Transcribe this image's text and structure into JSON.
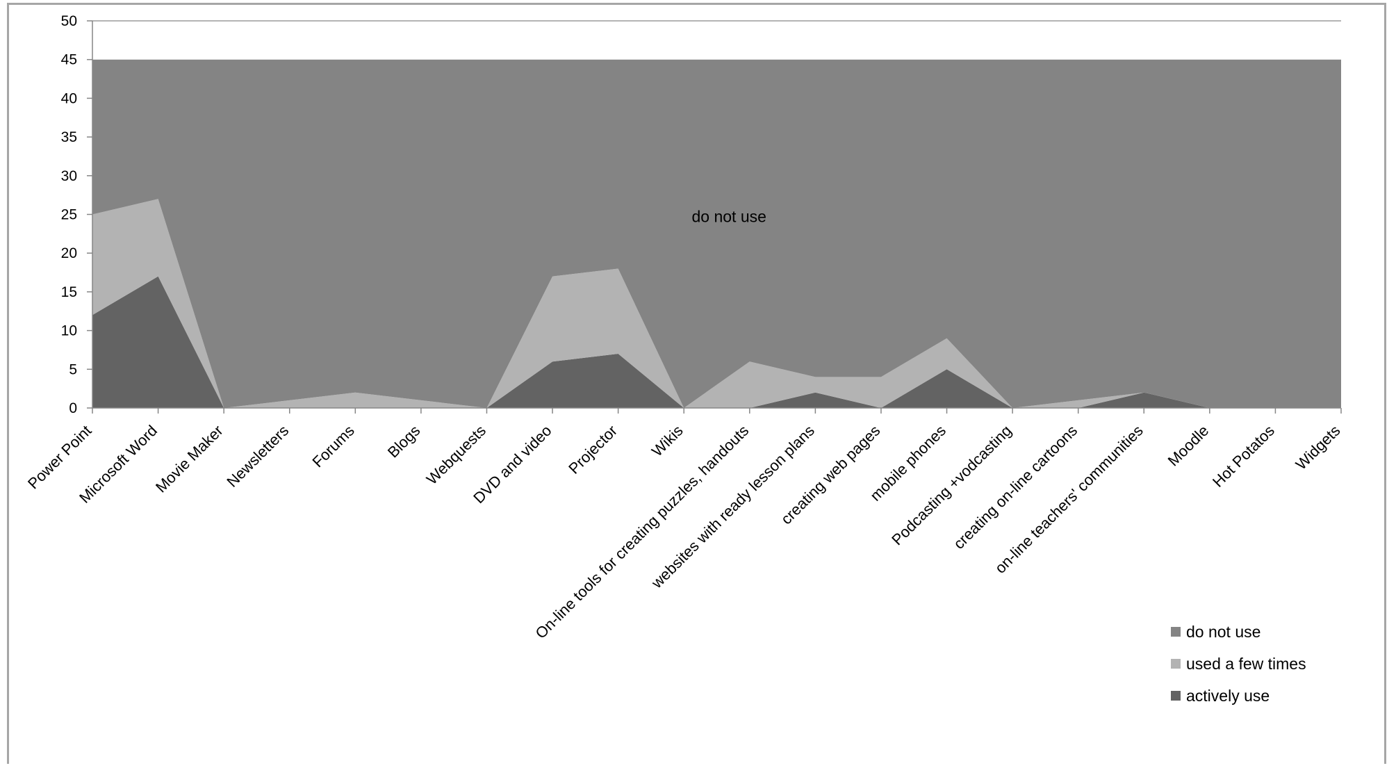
{
  "chart_data": {
    "type": "area",
    "stacked": true,
    "title": "",
    "xlabel": "",
    "ylabel": "",
    "ylim": [
      0,
      50
    ],
    "yticks": [
      0,
      5,
      10,
      15,
      20,
      25,
      30,
      35,
      40,
      45,
      50
    ],
    "grid": false,
    "legend_position": "bottom-right",
    "categories": [
      "Power Point",
      "Microsoft Word",
      "Movie Maker",
      "Newsletters",
      "Forums",
      "Blogs",
      "Webquests",
      "DVD and video",
      "Projector",
      "Wikis",
      "On-line tools for creating puzzles, handouts",
      "websites with ready lesson plans",
      "creating web pages",
      "mobile phones",
      "Podcasting +vodcasting",
      "creating on-line cartoons",
      "on-line teachers' communities",
      "Moodle",
      "Hot Potatos",
      "Widgets"
    ],
    "series": [
      {
        "name": "actively use",
        "color": "#636363",
        "values": [
          12,
          17,
          0,
          0,
          0,
          0,
          0,
          6,
          7,
          0,
          0,
          2,
          0,
          5,
          0,
          0,
          2,
          0,
          0,
          0
        ]
      },
      {
        "name": "used a few times",
        "color": "#b3b3b3",
        "values": [
          13,
          10,
          0,
          1,
          2,
          1,
          0,
          11,
          11,
          0,
          6,
          2,
          4,
          4,
          0,
          1,
          0,
          0,
          0,
          0
        ]
      },
      {
        "name": "do not use",
        "color": "#848484",
        "values": [
          20,
          18,
          45,
          44,
          43,
          44,
          45,
          28,
          27,
          45,
          39,
          41,
          41,
          36,
          45,
          44,
          43,
          45,
          45,
          45
        ]
      }
    ],
    "legend_order": [
      "do not use",
      "used a few times",
      "actively use"
    ],
    "annotations": [
      {
        "text": "do not use",
        "x": "Wikis",
        "y": 24
      }
    ]
  }
}
